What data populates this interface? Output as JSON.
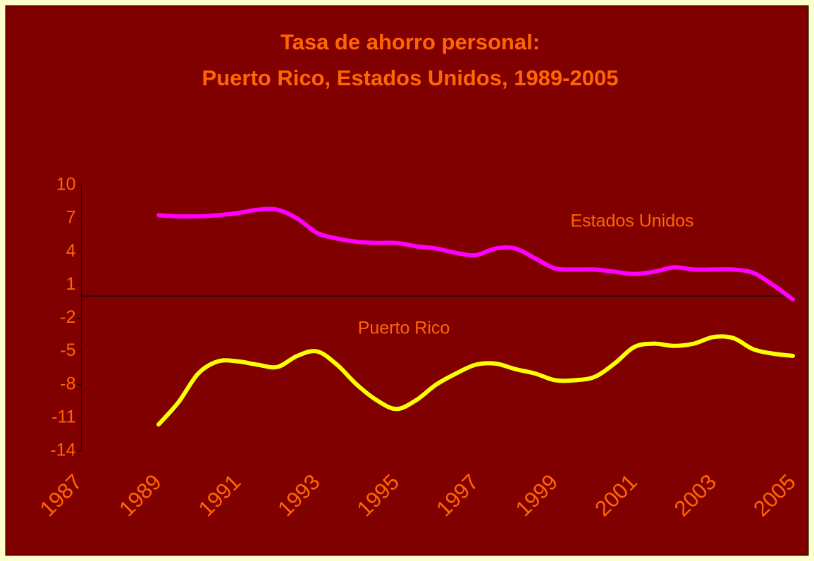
{
  "chart_data": {
    "type": "line",
    "title": [
      "Tasa de ahorro personal:",
      "Puerto Rico, Estados Unidos, 1989-2005"
    ],
    "annotations": [
      "Estados Unidos",
      "Puerto Rico"
    ],
    "x": [
      1989,
      1989.5,
      1990,
      1990.5,
      1991,
      1991.5,
      1992,
      1992.5,
      1993,
      1993.5,
      1994,
      1994.5,
      1995,
      1995.5,
      1996,
      1996.5,
      1997,
      1997.5,
      1998,
      1998.5,
      1999,
      1999.5,
      2000,
      2000.5,
      2001,
      2001.5,
      2002,
      2002.5,
      2003,
      2003.5,
      2004,
      2004.5,
      2005
    ],
    "series": [
      {
        "name": "Estados Unidos",
        "color": "#ff00ff",
        "values": [
          7.3,
          7.2,
          7.2,
          7.3,
          7.5,
          7.8,
          7.8,
          7.0,
          5.7,
          5.2,
          4.9,
          4.8,
          4.8,
          4.5,
          4.3,
          3.9,
          3.7,
          4.3,
          4.3,
          3.4,
          2.5,
          2.4,
          2.4,
          2.2,
          2.0,
          2.2,
          2.6,
          2.4,
          2.4,
          2.4,
          2.1,
          1.0,
          -0.3
        ]
      },
      {
        "name": "Puerto Rico",
        "color": "#ffff00",
        "values": [
          -11.6,
          -9.6,
          -7.0,
          -5.9,
          -5.9,
          -6.2,
          -6.4,
          -5.4,
          -5.0,
          -6.2,
          -8.0,
          -9.4,
          -10.2,
          -9.4,
          -8.0,
          -7.0,
          -6.2,
          -6.1,
          -6.6,
          -7.0,
          -7.6,
          -7.6,
          -7.3,
          -6.1,
          -4.6,
          -4.3,
          -4.5,
          -4.3,
          -3.7,
          -3.8,
          -4.8,
          -5.2,
          -5.4
        ]
      }
    ],
    "xlim": [
      1987,
      2005
    ],
    "xticks": [
      1987,
      1989,
      1991,
      1993,
      1995,
      1997,
      1999,
      2001,
      2003,
      2005
    ],
    "ylim": [
      -14,
      10
    ],
    "yticks": [
      10,
      7,
      4,
      1,
      -2,
      -5,
      -8,
      -11,
      -14
    ]
  }
}
